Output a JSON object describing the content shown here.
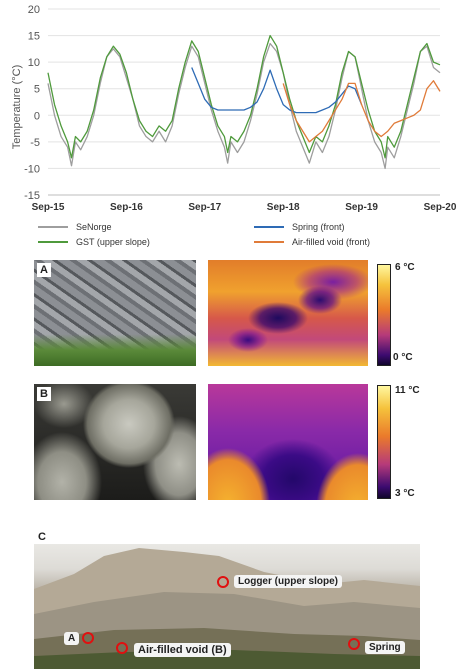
{
  "chart_data": {
    "type": "line",
    "ylabel": "Temperature (°C)",
    "xlabel": "",
    "ylim": [
      -15,
      20
    ],
    "yticks": [
      -15,
      -10,
      -5,
      0,
      5,
      10,
      15,
      20
    ],
    "x_ticks": [
      "Sep-15",
      "Sep-16",
      "Sep-17",
      "Sep-18",
      "Sep-19",
      "Sep-20"
    ],
    "x_range_months": [
      0,
      60
    ],
    "grid": true,
    "legend_position": "bottom",
    "series": [
      {
        "name": "SeNorge",
        "color": "#9e9e9e",
        "points": [
          [
            0,
            6
          ],
          [
            1,
            0
          ],
          [
            2,
            -4
          ],
          [
            3,
            -6
          ],
          [
            3.6,
            -9.5
          ],
          [
            4.2,
            -5
          ],
          [
            5,
            -6.5
          ],
          [
            6,
            -4
          ],
          [
            7,
            0
          ],
          [
            8,
            6
          ],
          [
            9,
            11
          ],
          [
            10,
            12.5
          ],
          [
            11,
            11
          ],
          [
            12,
            7
          ],
          [
            13,
            3
          ],
          [
            14,
            -2
          ],
          [
            15,
            -4
          ],
          [
            16,
            -5
          ],
          [
            17,
            -3
          ],
          [
            18,
            -5
          ],
          [
            19,
            -2
          ],
          [
            20,
            4
          ],
          [
            21,
            9
          ],
          [
            22,
            13
          ],
          [
            23,
            11
          ],
          [
            24,
            6
          ],
          [
            25,
            1
          ],
          [
            26,
            -3
          ],
          [
            27,
            -6
          ],
          [
            27.5,
            -9
          ],
          [
            28,
            -5
          ],
          [
            29,
            -7
          ],
          [
            30,
            -5
          ],
          [
            31,
            -1
          ],
          [
            32,
            4
          ],
          [
            33,
            10
          ],
          [
            34,
            13.5
          ],
          [
            35,
            12
          ],
          [
            36,
            8
          ],
          [
            37,
            2
          ],
          [
            38,
            -3
          ],
          [
            39,
            -6
          ],
          [
            40,
            -9
          ],
          [
            41,
            -5
          ],
          [
            42,
            -7
          ],
          [
            43,
            -4
          ],
          [
            44,
            1
          ],
          [
            45,
            7
          ],
          [
            46,
            12
          ],
          [
            47,
            11
          ],
          [
            48,
            5
          ],
          [
            49,
            -1
          ],
          [
            50,
            -5
          ],
          [
            51,
            -7
          ],
          [
            51.6,
            -10
          ],
          [
            52,
            -6
          ],
          [
            53,
            -8
          ],
          [
            54,
            -4
          ],
          [
            55,
            1
          ],
          [
            56,
            6
          ],
          [
            57,
            12
          ],
          [
            58,
            13
          ],
          [
            59,
            9
          ],
          [
            60,
            8
          ]
        ]
      },
      {
        "name": "GST (upper slope)",
        "color": "#4f9a3c",
        "points": [
          [
            0,
            8
          ],
          [
            1,
            2
          ],
          [
            2,
            -2
          ],
          [
            3,
            -5
          ],
          [
            3.6,
            -8
          ],
          [
            4.2,
            -4
          ],
          [
            5,
            -5
          ],
          [
            6,
            -3
          ],
          [
            7,
            1
          ],
          [
            8,
            7
          ],
          [
            9,
            11
          ],
          [
            10,
            13
          ],
          [
            11,
            11.5
          ],
          [
            12,
            8
          ],
          [
            13,
            3
          ],
          [
            14,
            -1
          ],
          [
            15,
            -3
          ],
          [
            16,
            -4
          ],
          [
            17,
            -2
          ],
          [
            18,
            -3
          ],
          [
            19,
            -1
          ],
          [
            20,
            5
          ],
          [
            21,
            10
          ],
          [
            22,
            14
          ],
          [
            23,
            12
          ],
          [
            24,
            7
          ],
          [
            25,
            2
          ],
          [
            26,
            -2
          ],
          [
            27,
            -4
          ],
          [
            27.5,
            -7
          ],
          [
            28,
            -4
          ],
          [
            29,
            -5
          ],
          [
            30,
            -3
          ],
          [
            31,
            0
          ],
          [
            32,
            5
          ],
          [
            33,
            11
          ],
          [
            34,
            15
          ],
          [
            35,
            13
          ],
          [
            36,
            8
          ],
          [
            37,
            3
          ],
          [
            38,
            -1
          ],
          [
            39,
            -4
          ],
          [
            40,
            -7
          ],
          [
            41,
            -4
          ],
          [
            42,
            -5
          ],
          [
            43,
            -2
          ],
          [
            44,
            2
          ],
          [
            45,
            8
          ],
          [
            46,
            12
          ],
          [
            47,
            11
          ],
          [
            48,
            6
          ],
          [
            49,
            1
          ],
          [
            50,
            -3
          ],
          [
            51,
            -5
          ],
          [
            51.6,
            -8
          ],
          [
            52,
            -4
          ],
          [
            53,
            -6
          ],
          [
            54,
            -3
          ],
          [
            55,
            2
          ],
          [
            56,
            7
          ],
          [
            57,
            12
          ],
          [
            58,
            13.5
          ],
          [
            59,
            10
          ],
          [
            60,
            9.5
          ]
        ]
      },
      {
        "name": "Spring (front)",
        "color": "#2e6bb5",
        "points": [
          [
            22,
            9
          ],
          [
            23,
            6
          ],
          [
            24,
            3
          ],
          [
            25,
            1.5
          ],
          [
            26,
            1
          ],
          [
            27,
            1
          ],
          [
            28,
            1
          ],
          [
            29,
            1
          ],
          [
            30,
            1
          ],
          [
            31,
            1.5
          ],
          [
            32,
            2.5
          ],
          [
            33,
            5
          ],
          [
            34,
            8.5
          ],
          [
            35,
            5
          ],
          [
            36,
            2
          ],
          [
            37,
            1
          ],
          [
            38,
            0.5
          ],
          [
            39,
            0.5
          ],
          [
            40,
            0.5
          ],
          [
            41,
            0.5
          ],
          [
            42,
            1
          ],
          [
            43,
            1.5
          ],
          [
            44,
            2.5
          ],
          [
            45,
            4
          ],
          [
            46,
            5.5
          ],
          [
            47,
            5
          ],
          [
            48,
            2
          ]
        ]
      },
      {
        "name": "Air-filled void (front)",
        "color": "#e07b39",
        "points": [
          [
            36,
            6
          ],
          [
            37,
            2
          ],
          [
            38,
            -1
          ],
          [
            39,
            -3
          ],
          [
            40,
            -5
          ],
          [
            41,
            -4
          ],
          [
            42,
            -3
          ],
          [
            43,
            -1
          ],
          [
            44,
            1
          ],
          [
            45,
            3
          ],
          [
            46,
            6
          ],
          [
            47,
            6
          ],
          [
            48,
            2
          ],
          [
            49,
            -1
          ],
          [
            50,
            -3
          ],
          [
            51,
            -4
          ],
          [
            52,
            -3
          ],
          [
            53,
            -1.5
          ],
          [
            54,
            -1
          ],
          [
            55,
            -0.5
          ],
          [
            56,
            0
          ],
          [
            57,
            1
          ],
          [
            58,
            5
          ],
          [
            59,
            6.5
          ],
          [
            60,
            4.5
          ]
        ]
      }
    ]
  },
  "legend": {
    "senorge": "SeNorge",
    "gst": "GST (upper slope)",
    "spring": "Spring (front)",
    "void": "Air-filled void (front)"
  },
  "colors": {
    "senorge": "#9e9e9e",
    "gst": "#4f9a3c",
    "spring": "#2e6bb5",
    "void": "#e07b39"
  },
  "panels": {
    "a_letter": "A",
    "a_scale_max": "6 °C",
    "a_scale_min": "0 °C",
    "b_letter": "B",
    "b_scale_max": "11 °C",
    "b_scale_min": "3 °C",
    "c_letter": "C"
  },
  "photo_c_labels": {
    "logger": "Logger (upper slope)",
    "void": "Air-filled void (B)",
    "spring": "Spring",
    "a": "A"
  }
}
